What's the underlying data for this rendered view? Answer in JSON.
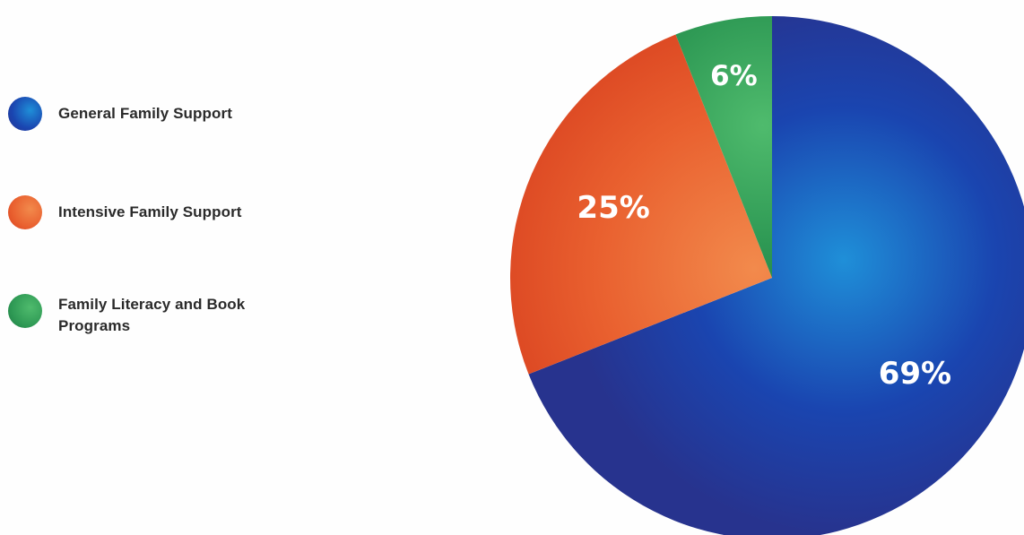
{
  "chart_data": {
    "type": "pie",
    "categories": [
      "General Family Support",
      "Intensive Family Support",
      "Family Literacy and Book Programs"
    ],
    "values": [
      69,
      25,
      6
    ],
    "labels": [
      "69%",
      "25%",
      "6%"
    ],
    "title": "",
    "legend_position": "left",
    "colors": {
      "General Family Support": [
        "#1f8fd8",
        "#1a45b0",
        "#27338e"
      ],
      "Intensive Family Support": [
        "#f28a4c",
        "#e9602f",
        "#d8401f"
      ],
      "Family Literacy and Book Programs": [
        "#4fbb6d",
        "#2f9a55",
        "#1e7a43"
      ]
    }
  }
}
